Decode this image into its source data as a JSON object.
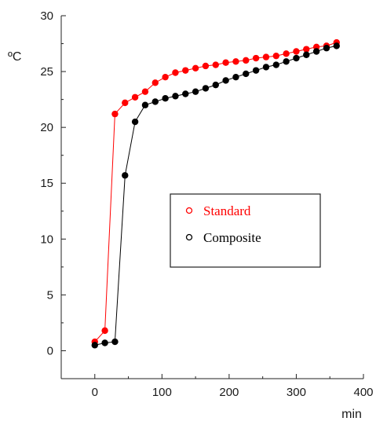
{
  "chart_data": {
    "type": "line",
    "xlabel": "min",
    "ylabel": "ºC",
    "xlim": [
      -50,
      400
    ],
    "ylim": [
      -2.5,
      30
    ],
    "x_ticks": [
      0,
      100,
      200,
      300,
      400
    ],
    "y_ticks": [
      0,
      5,
      10,
      15,
      20,
      25,
      30
    ],
    "grid": false,
    "legend_position": "center-right",
    "series": [
      {
        "name": "Standard",
        "color": "#ff0000",
        "x": [
          0,
          15,
          30,
          45,
          60,
          75,
          90,
          105,
          120,
          135,
          150,
          165,
          180,
          195,
          210,
          225,
          240,
          255,
          270,
          285,
          300,
          315,
          330,
          345,
          360
        ],
        "y": [
          0.8,
          1.8,
          21.2,
          22.2,
          22.7,
          23.2,
          24.0,
          24.5,
          24.9,
          25.1,
          25.3,
          25.5,
          25.6,
          25.8,
          25.9,
          26.0,
          26.2,
          26.3,
          26.4,
          26.6,
          26.8,
          27.0,
          27.2,
          27.3,
          27.6
        ]
      },
      {
        "name": "Composite",
        "color": "#000000",
        "x": [
          0,
          15,
          30,
          45,
          60,
          75,
          90,
          105,
          120,
          135,
          150,
          165,
          180,
          195,
          210,
          225,
          240,
          255,
          270,
          285,
          300,
          315,
          330,
          345,
          360
        ],
        "y": [
          0.5,
          0.7,
          0.8,
          15.7,
          20.5,
          22.0,
          22.3,
          22.6,
          22.8,
          23.0,
          23.2,
          23.5,
          23.8,
          24.2,
          24.5,
          24.8,
          25.1,
          25.4,
          25.6,
          25.9,
          26.2,
          26.5,
          26.8,
          27.1,
          27.3
        ]
      }
    ]
  }
}
